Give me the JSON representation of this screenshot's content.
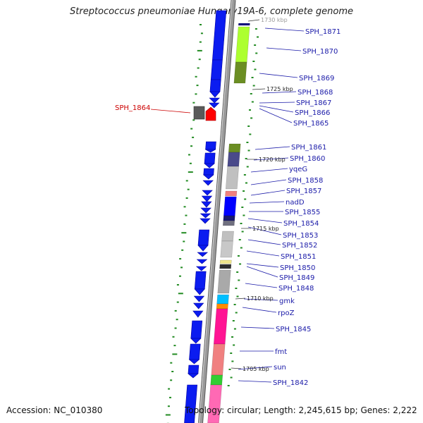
{
  "title": "Streptococcus pneumoniae Hungary19A-6, complete genome",
  "accession": "Accession: NC_010380",
  "topology": "Topology: circular; Length: 2,245,615 bp; Genes: 2,222",
  "colors": {
    "backbone": "#9a9a9a",
    "gene_blue": "#0b1cf0",
    "highlight_red": "#ff0000",
    "label_blue": "#1a1aa8",
    "label_red": "#cc0000",
    "gc_green": "#228b22"
  },
  "ticks": [
    "1730 kbp",
    "1725 kbp",
    "1720 kbp",
    "1715 kbp",
    "1710 kbp",
    "1705 kbp"
  ],
  "genes_right": [
    "SPH_1871",
    "SPH_1870",
    "SPH_1869",
    "SPH_1868",
    "SPH_1867",
    "SPH_1866",
    "SPH_1865",
    "SPH_1861",
    "SPH_1860",
    "yqeG",
    "SPH_1858",
    "SPH_1857",
    "nadD",
    "SPH_1855",
    "SPH_1854",
    "SPH_1853",
    "SPH_1852",
    "SPH_1851",
    "SPH_1850",
    "SPH_1849",
    "SPH_1848",
    "gmk",
    "rpoZ",
    "SPH_1845",
    "fmt",
    "sun",
    "SPH_1842"
  ],
  "gene_highlight": "SPH_1864"
}
